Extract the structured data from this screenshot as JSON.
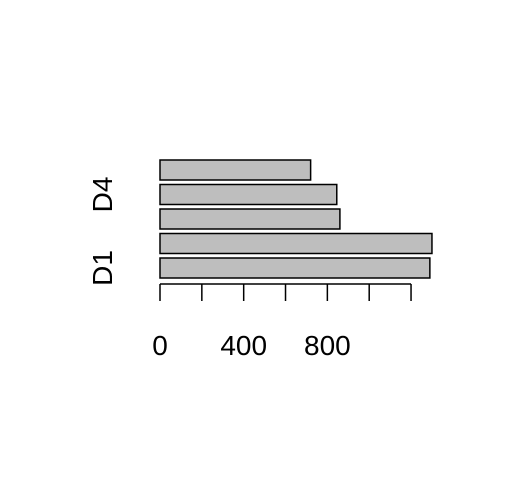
{
  "chart_data": {
    "type": "bar",
    "orientation": "horizontal",
    "categories": [
      "D1",
      "D2",
      "D3",
      "D4",
      "D5"
    ],
    "category_labels_shown": [
      "D1",
      "",
      "",
      "D4",
      ""
    ],
    "values": [
      1290,
      1300,
      860,
      845,
      720
    ],
    "title": "",
    "xlabel": "",
    "ylabel": "",
    "xlim": [
      0,
      1200
    ],
    "x_ticks": [
      0,
      200,
      400,
      600,
      800,
      1000,
      1200
    ],
    "x_tick_labels": [
      "0",
      "",
      "400",
      "",
      "800",
      "",
      ""
    ],
    "grid": false,
    "bar_color": "#bebebe",
    "edge_color": "#000000"
  }
}
